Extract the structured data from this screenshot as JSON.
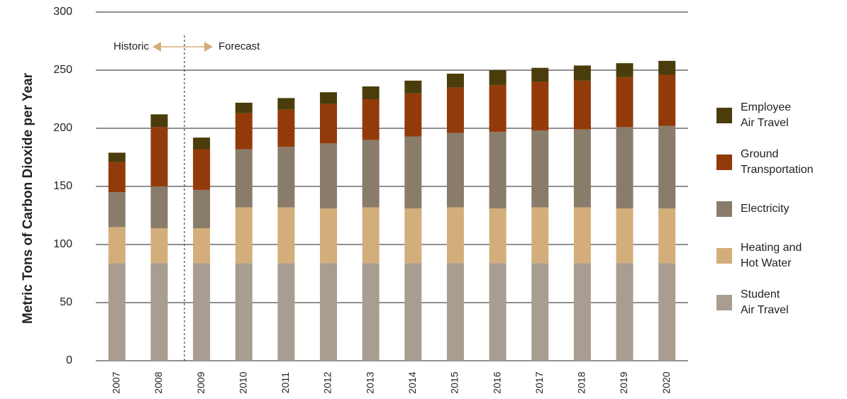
{
  "chart_data": {
    "type": "stacked-bar",
    "y_label": "Metric Tons of Carbon Dioxide per Year",
    "annotations": [
      "Historic",
      "Forecast"
    ],
    "categories": [
      "2007",
      "2008",
      "2009",
      "2010",
      "2011",
      "2012",
      "2013",
      "2014",
      "2015",
      "2016",
      "2017",
      "2018",
      "2019",
      "2020"
    ],
    "series": [
      {
        "name": "Student\nAir Travel",
        "color": "#a89d90",
        "values": [
          84,
          84,
          84,
          84,
          84,
          84,
          84,
          84,
          84,
          84,
          84,
          84,
          84,
          84
        ]
      },
      {
        "name": "Heating and\nHot Water",
        "color": "#d4ae7a",
        "values": [
          31,
          30,
          30,
          48,
          48,
          47,
          48,
          47,
          48,
          47,
          48,
          48,
          47,
          47
        ]
      },
      {
        "name": "Electricity",
        "color": "#8a7c6a",
        "values": [
          30,
          36,
          33,
          50,
          52,
          56,
          58,
          62,
          64,
          66,
          66,
          67,
          70,
          71
        ]
      },
      {
        "name": "Ground\nTransportation",
        "color": "#933a0a",
        "values": [
          26,
          51,
          35,
          31,
          32,
          34,
          35,
          37,
          39,
          40,
          42,
          42,
          43,
          44
        ]
      },
      {
        "name": "Employee\nAir Travel",
        "color": "#4a3d0b",
        "values": [
          8,
          11,
          10,
          9,
          10,
          10,
          11,
          11,
          12,
          13,
          12,
          13,
          12,
          12
        ]
      }
    ],
    "ylim": [
      0,
      300
    ],
    "yticks": [
      0,
      50,
      100,
      150,
      200,
      250,
      300
    ],
    "grid": true
  }
}
